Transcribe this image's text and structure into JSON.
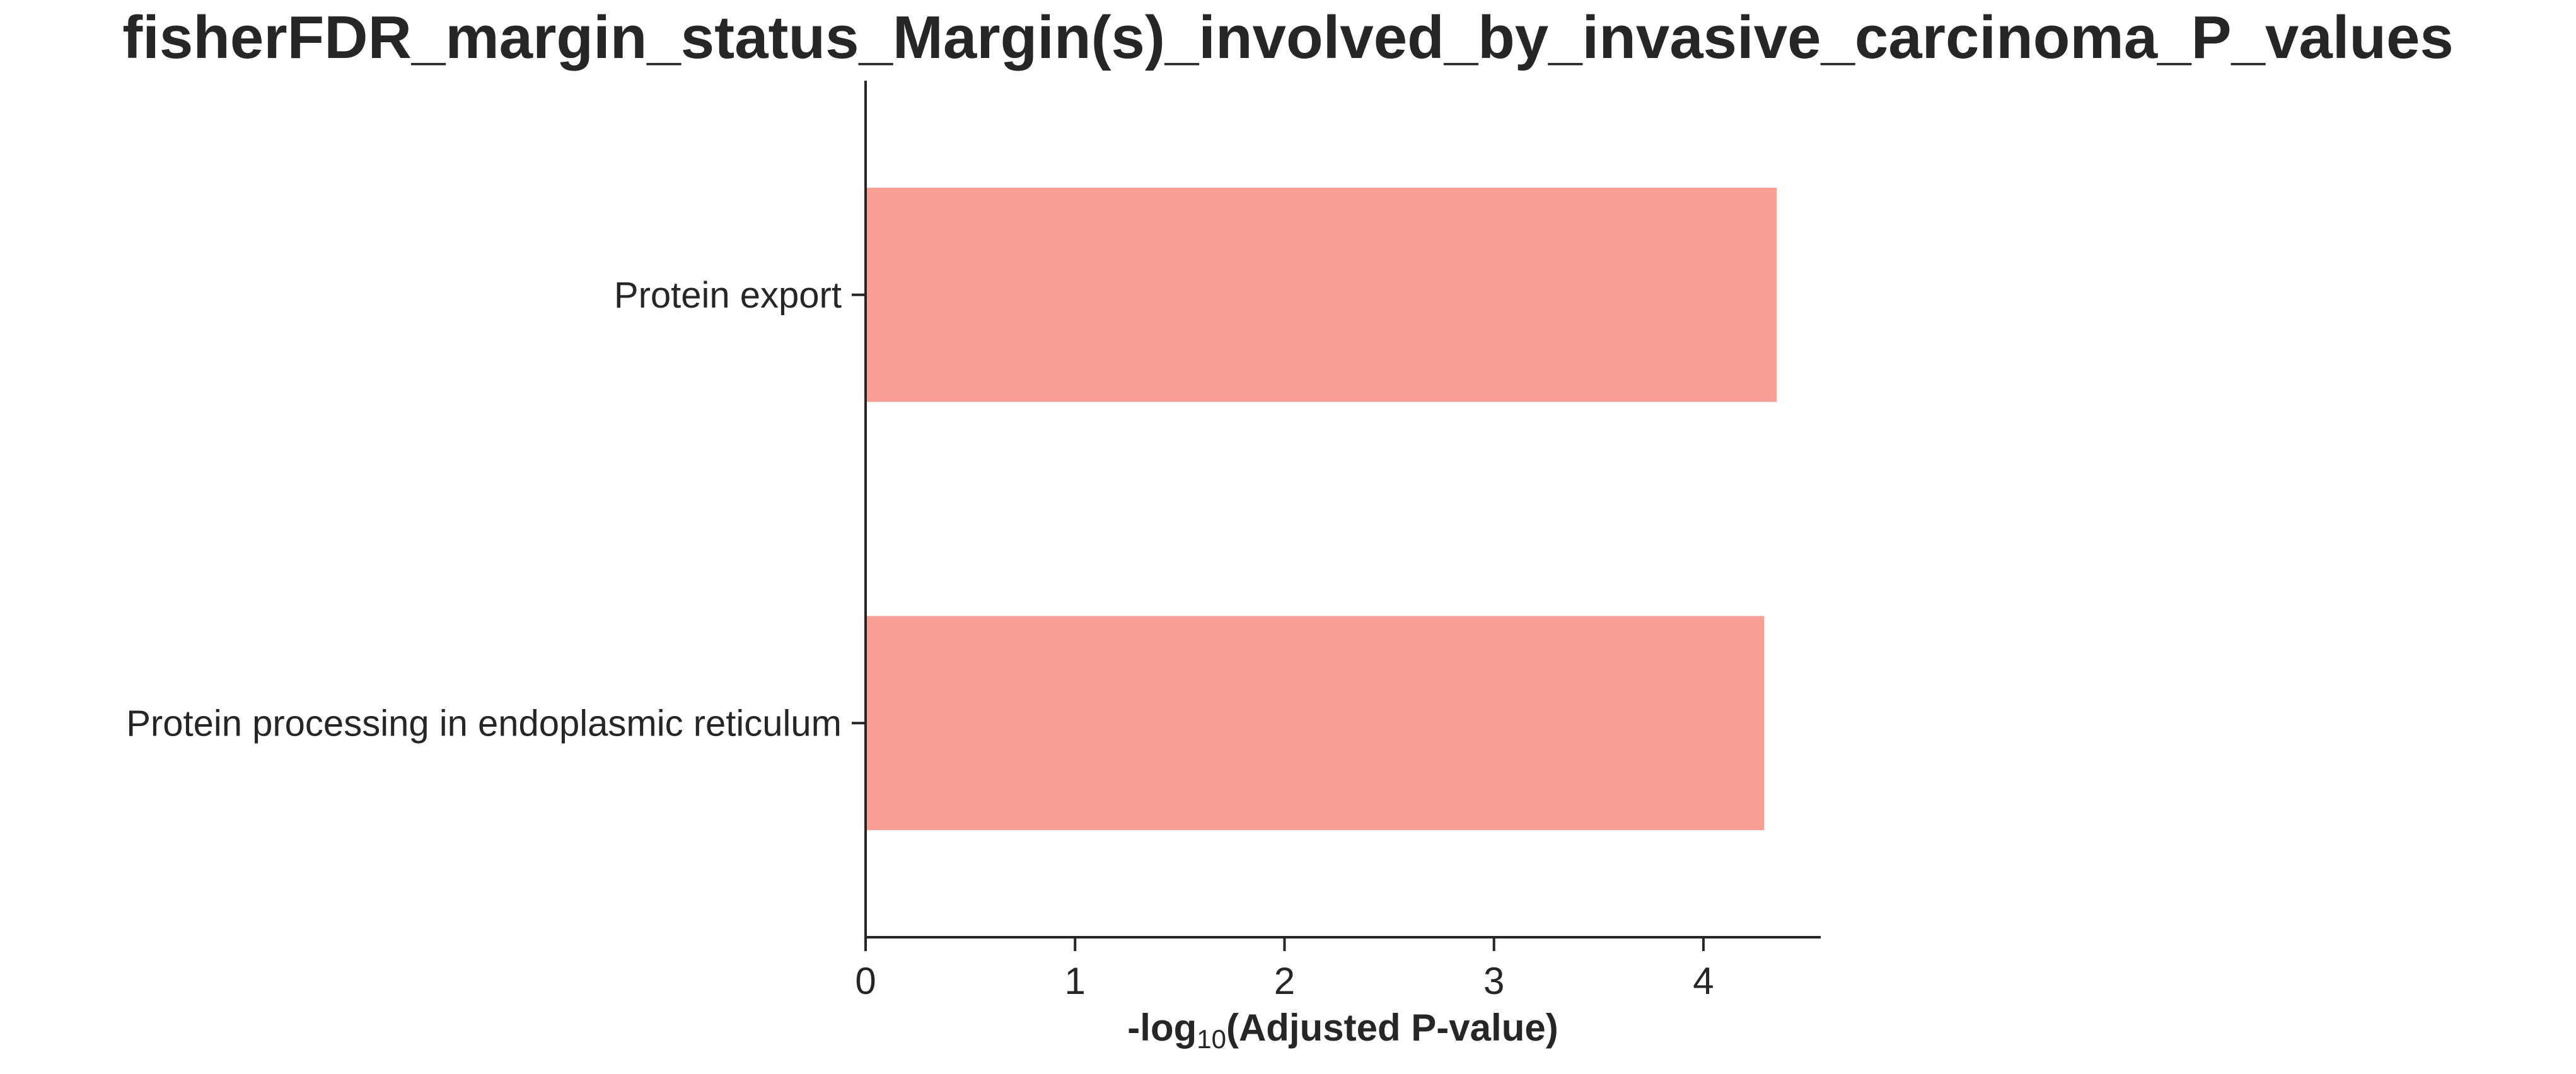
{
  "chart_data": {
    "type": "bar",
    "orientation": "horizontal",
    "title": "fisherFDR_margin_status_Margin(s)_involved_by_invasive_carcinoma_P_values",
    "xlabel_parts": {
      "prefix": "-log",
      "subscript": "10",
      "suffix": "(Adjusted P-value)"
    },
    "ylabel": "",
    "categories": [
      "Protein export",
      "Protein processing in endoplasmic reticulum"
    ],
    "values": [
      4.35,
      4.29
    ],
    "xlim": [
      0,
      4.56
    ],
    "xticks": [
      0,
      1,
      2,
      3,
      4
    ],
    "bar_color": "#fa9f96",
    "axis_color": "#262626",
    "grid": false,
    "legend": "none"
  }
}
